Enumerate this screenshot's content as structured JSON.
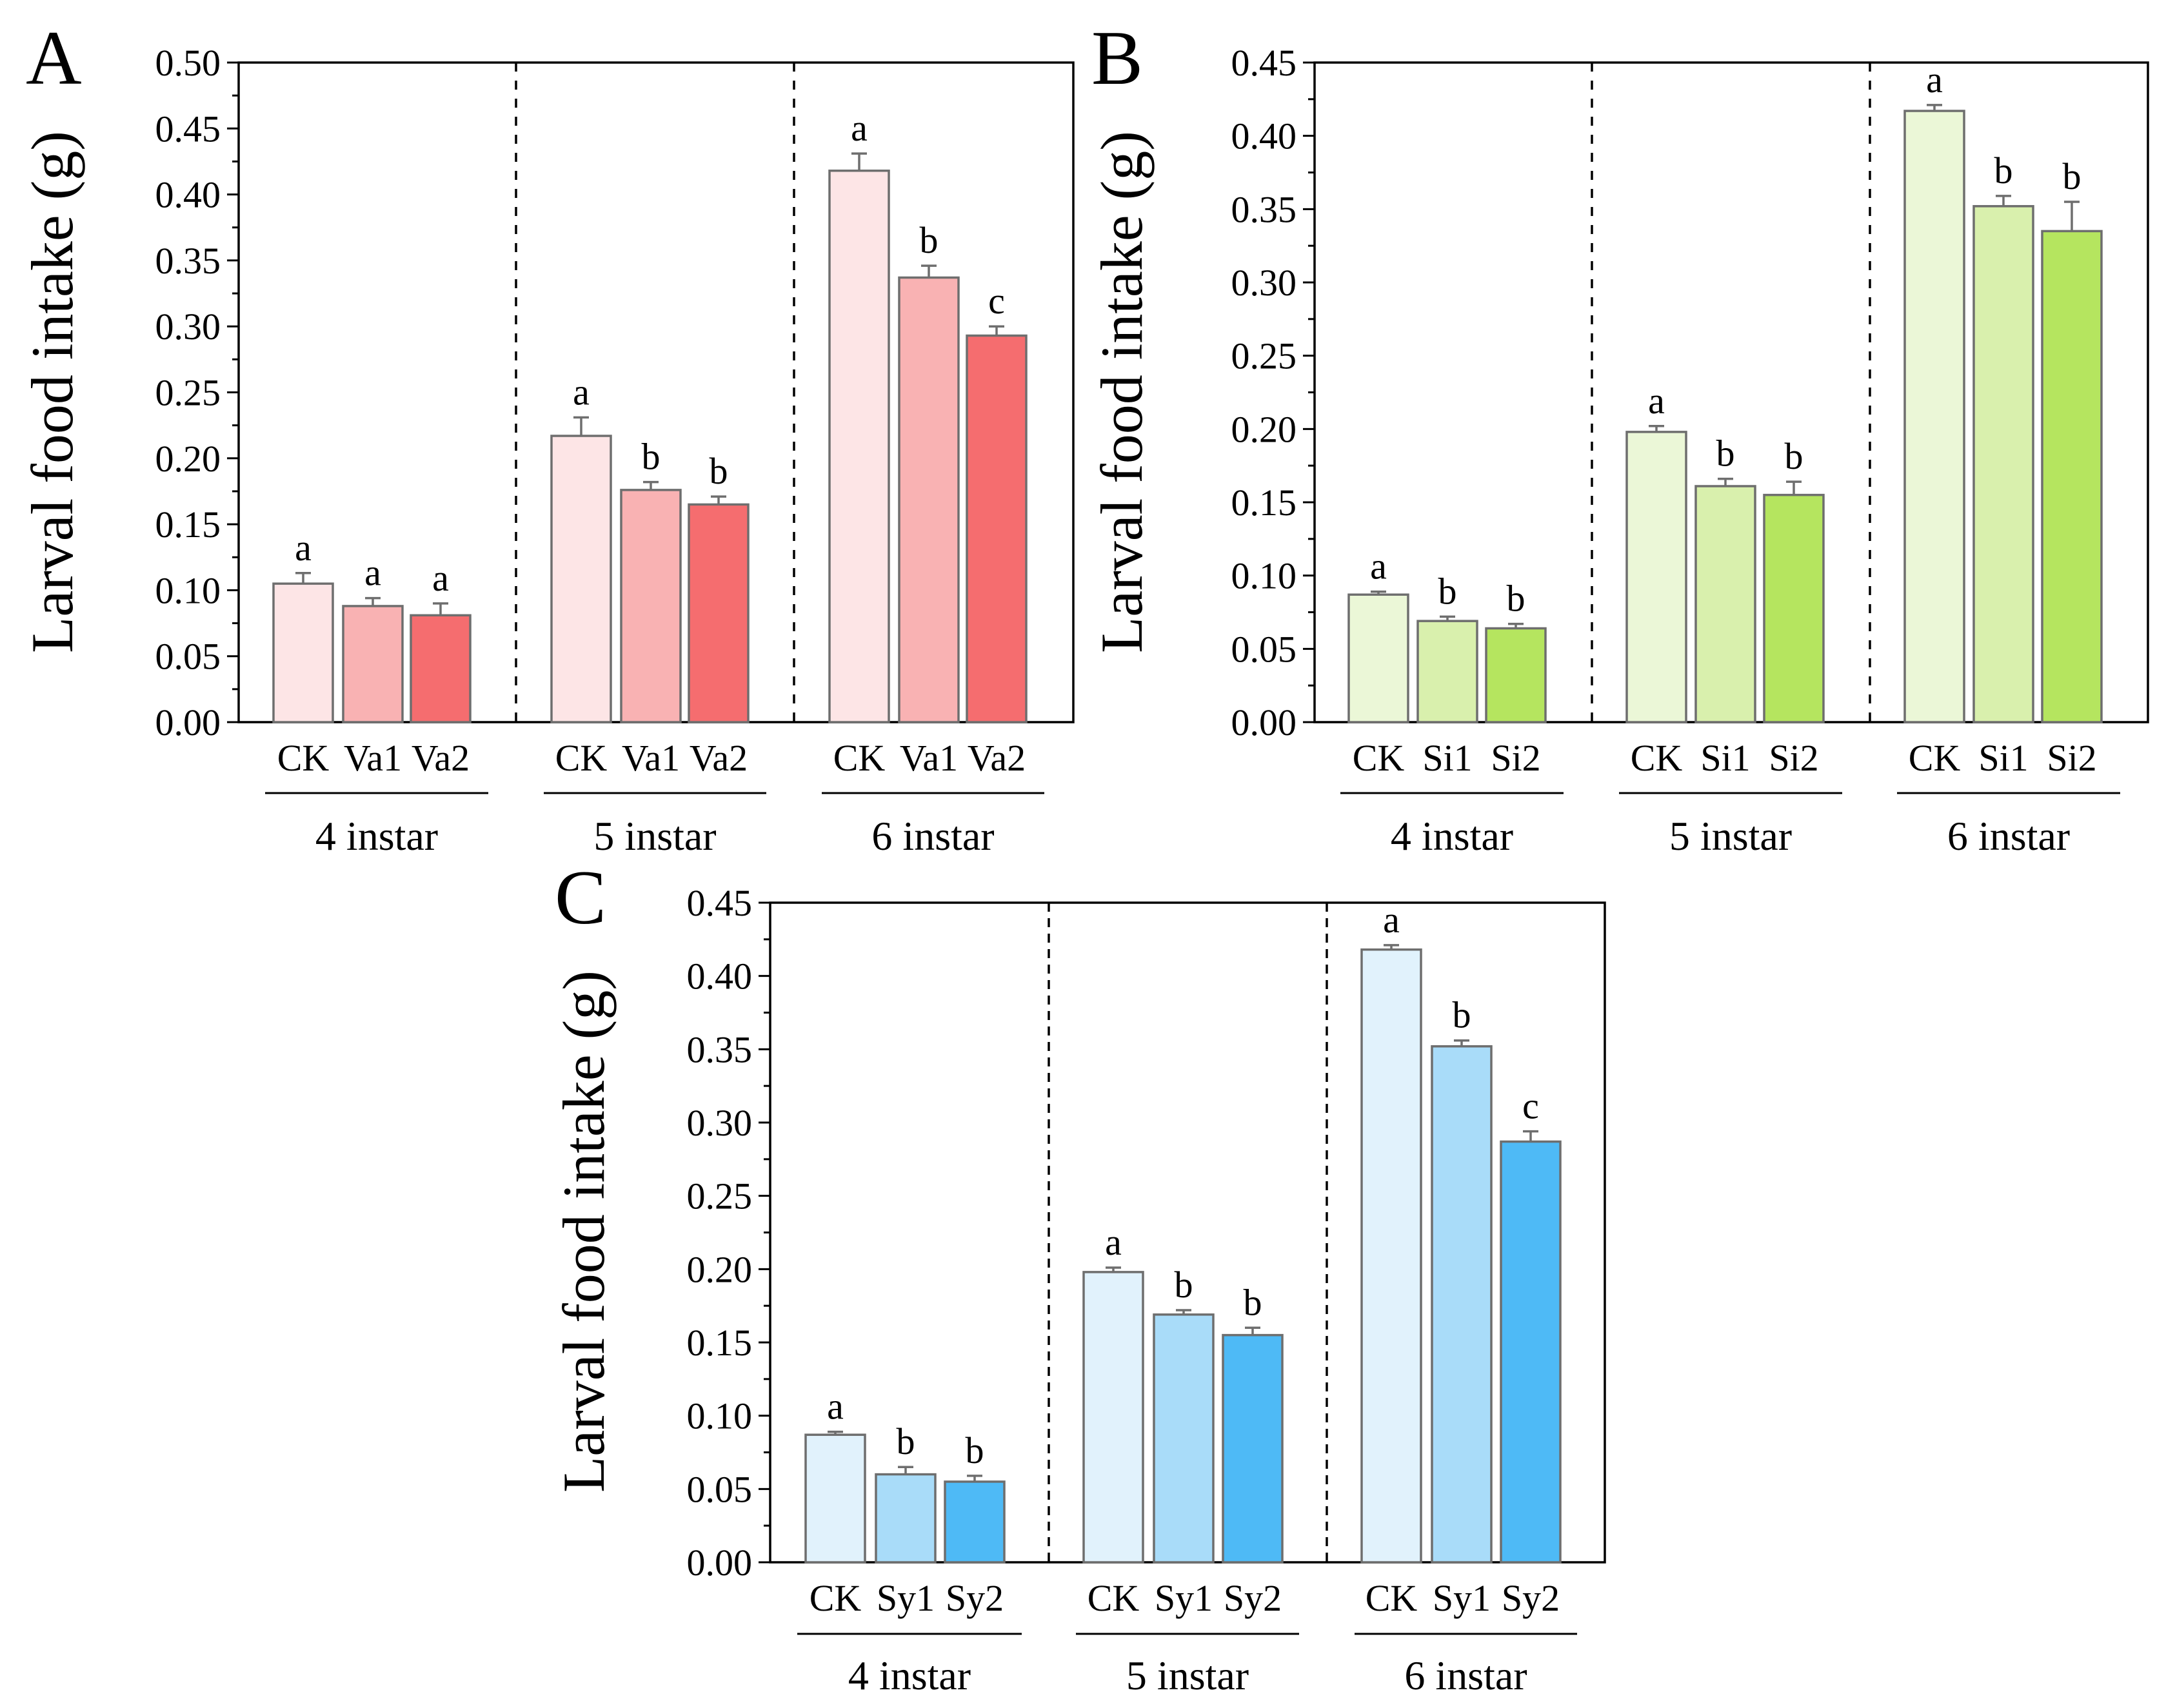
{
  "figure": {
    "colors": {
      "red": [
        "#fde5e6",
        "#f9b2b3",
        "#f56d6f"
      ],
      "green": [
        "#ebf7d7",
        "#d9f0ad",
        "#b5e55f"
      ],
      "blue": [
        "#e1f2fc",
        "#a9dcf9",
        "#4ebaf6"
      ]
    }
  },
  "chart_data": [
    {
      "panel": "A",
      "type": "bar",
      "ylabel": "Larval food intake (g)",
      "ylim": [
        0,
        0.5
      ],
      "yticks": [
        "0.00",
        "0.05",
        "0.10",
        "0.15",
        "0.20",
        "0.25",
        "0.30",
        "0.35",
        "0.40",
        "0.45",
        "0.50"
      ],
      "palette": "red",
      "groups": [
        {
          "label": "4 instar",
          "categories": [
            "CK",
            "Va1",
            "Va2"
          ],
          "values": [
            0.105,
            0.088,
            0.081
          ],
          "errors": [
            0.008,
            0.006,
            0.009
          ],
          "letters": [
            "a",
            "a",
            "a"
          ]
        },
        {
          "label": "5 instar",
          "categories": [
            "CK",
            "Va1",
            "Va2"
          ],
          "values": [
            0.217,
            0.176,
            0.165
          ],
          "errors": [
            0.014,
            0.006,
            0.006
          ],
          "letters": [
            "a",
            "b",
            "b"
          ]
        },
        {
          "label": "6 instar",
          "categories": [
            "CK",
            "Va1",
            "Va2"
          ],
          "values": [
            0.418,
            0.337,
            0.293
          ],
          "errors": [
            0.013,
            0.009,
            0.007
          ],
          "letters": [
            "a",
            "b",
            "c"
          ]
        }
      ]
    },
    {
      "panel": "B",
      "type": "bar",
      "ylabel": "Larval food intake (g)",
      "ylim": [
        0,
        0.45
      ],
      "yticks": [
        "0.00",
        "0.05",
        "0.10",
        "0.15",
        "0.20",
        "0.25",
        "0.30",
        "0.35",
        "0.40",
        "0.45"
      ],
      "palette": "green",
      "groups": [
        {
          "label": "4 instar",
          "categories": [
            "CK",
            "Si1",
            "Si2"
          ],
          "values": [
            0.087,
            0.069,
            0.064
          ],
          "errors": [
            0.002,
            0.003,
            0.003
          ],
          "letters": [
            "a",
            "b",
            "b"
          ]
        },
        {
          "label": "5 instar",
          "categories": [
            "CK",
            "Si1",
            "Si2"
          ],
          "values": [
            0.198,
            0.161,
            0.155
          ],
          "errors": [
            0.004,
            0.005,
            0.009
          ],
          "letters": [
            "a",
            "b",
            "b"
          ]
        },
        {
          "label": "6 instar",
          "categories": [
            "CK",
            "Si1",
            "Si2"
          ],
          "values": [
            0.417,
            0.352,
            0.335
          ],
          "errors": [
            0.004,
            0.007,
            0.02
          ],
          "letters": [
            "a",
            "b",
            "b"
          ]
        }
      ]
    },
    {
      "panel": "C",
      "type": "bar",
      "ylabel": "Larval food intake (g)",
      "ylim": [
        0,
        0.45
      ],
      "yticks": [
        "0.00",
        "0.05",
        "0.10",
        "0.15",
        "0.20",
        "0.25",
        "0.30",
        "0.35",
        "0.40",
        "0.45"
      ],
      "palette": "blue",
      "groups": [
        {
          "label": "4 instar",
          "categories": [
            "CK",
            "Sy1",
            "Sy2"
          ],
          "values": [
            0.087,
            0.06,
            0.055
          ],
          "errors": [
            0.002,
            0.005,
            0.004
          ],
          "letters": [
            "a",
            "b",
            "b"
          ]
        },
        {
          "label": "5 instar",
          "categories": [
            "CK",
            "Sy1",
            "Sy2"
          ],
          "values": [
            0.198,
            0.169,
            0.155
          ],
          "errors": [
            0.003,
            0.003,
            0.005
          ],
          "letters": [
            "a",
            "b",
            "b"
          ]
        },
        {
          "label": "6 instar",
          "categories": [
            "CK",
            "Sy1",
            "Sy2"
          ],
          "values": [
            0.418,
            0.352,
            0.287
          ],
          "errors": [
            0.003,
            0.004,
            0.007
          ],
          "letters": [
            "a",
            "b",
            "c"
          ]
        }
      ]
    }
  ]
}
